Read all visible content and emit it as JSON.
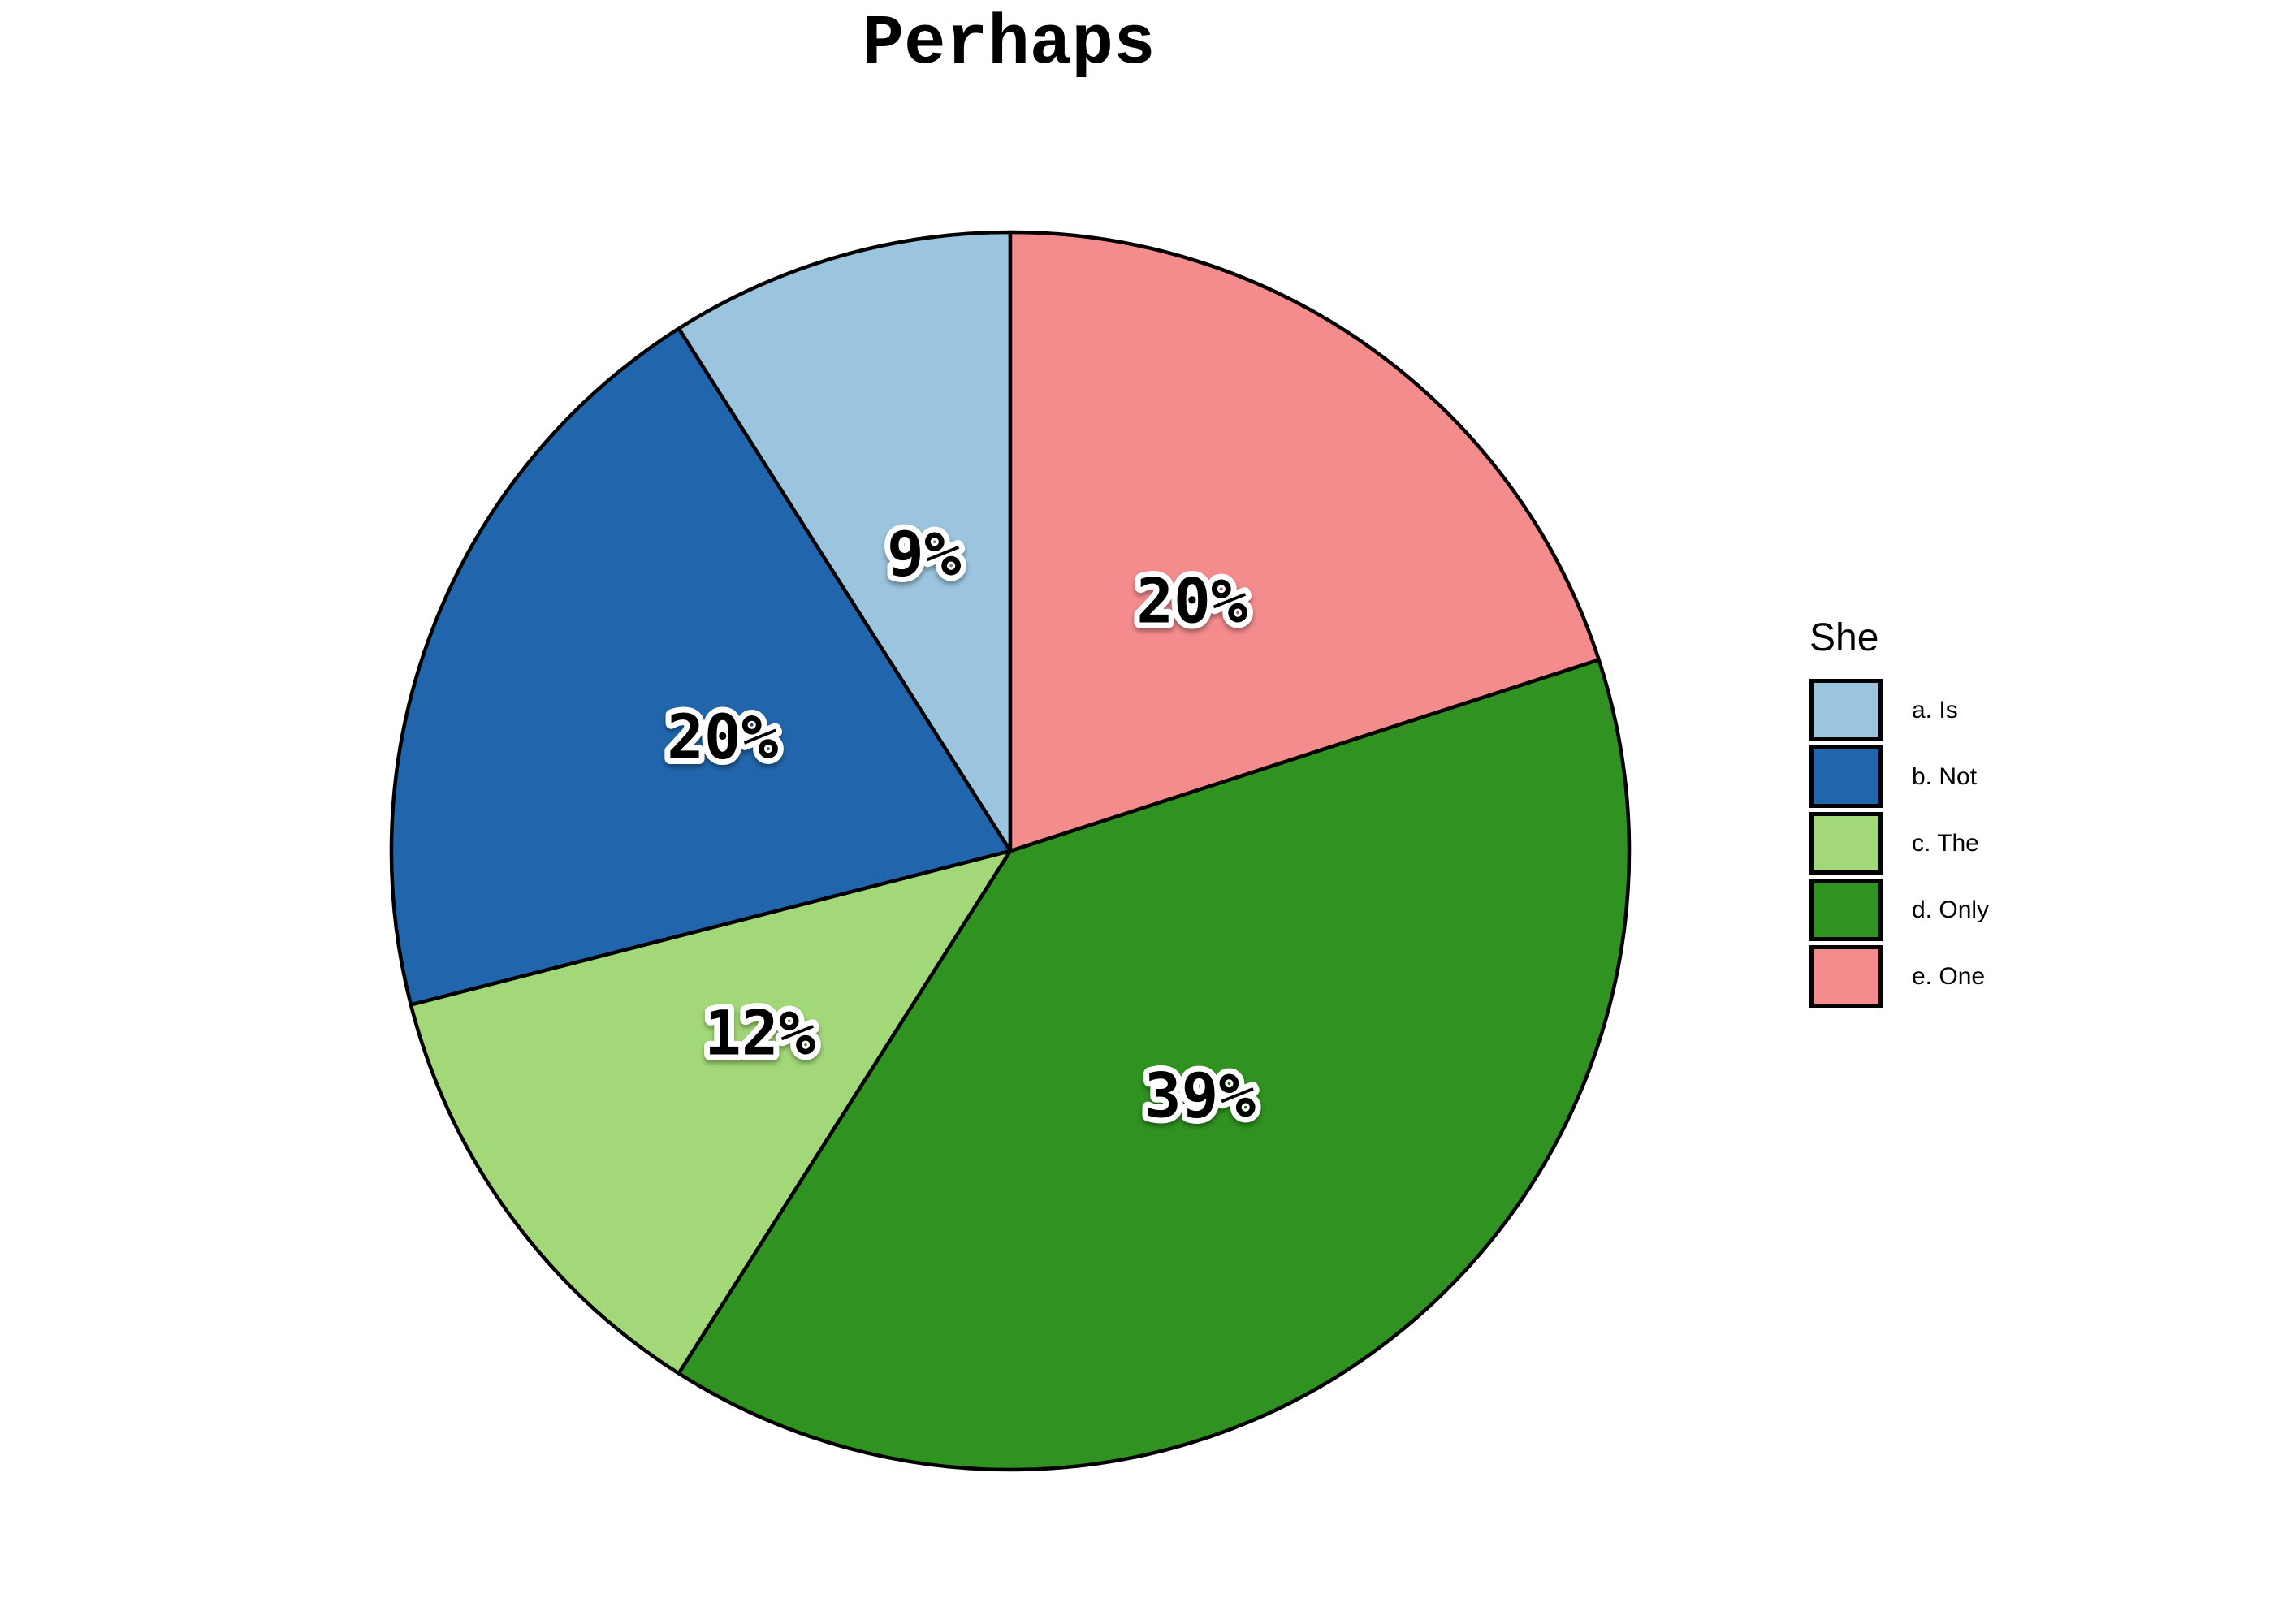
{
  "title": "Perhaps",
  "legend": {
    "title": "She",
    "items": [
      {
        "label": "a. Is",
        "color": "#9bc4df"
      },
      {
        "label": "b. Not",
        "color": "#2166ac"
      },
      {
        "label": "c. The",
        "color": "#a2d878"
      },
      {
        "label": "d. Only",
        "color": "#309220"
      },
      {
        "label": "e. One",
        "color": "#f48b8d"
      }
    ]
  },
  "chart_data": {
    "type": "pie",
    "title": "Perhaps",
    "legend_title": "She",
    "legend_position": "right",
    "categories": [
      "a. Is",
      "b. Not",
      "c. The",
      "d. Only",
      "e. One"
    ],
    "values": [
      9,
      20,
      12,
      39,
      20
    ],
    "unit": "percent",
    "labels": [
      "9%",
      "20%",
      "12%",
      "39%",
      "20%"
    ],
    "colors": [
      "#9bc4df",
      "#2166ac",
      "#a2d878",
      "#309220",
      "#f48b8d"
    ],
    "start_angle": "12 o'clock",
    "direction": "counterclockwise",
    "slice_border_color": "#000000",
    "label_text_color": "#000000",
    "label_outline_color": "#ffffff"
  }
}
